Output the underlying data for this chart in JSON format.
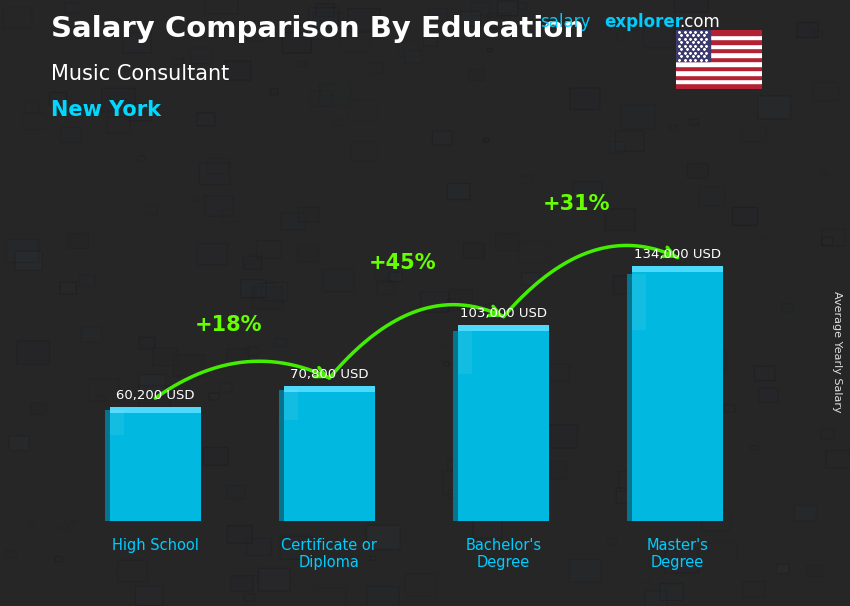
{
  "title": "Salary Comparison By Education",
  "subtitle1": "Music Consultant",
  "subtitle2": "New York",
  "ylabel": "Average Yearly Salary",
  "categories": [
    "High School",
    "Certificate or\nDiploma",
    "Bachelor's\nDegree",
    "Master's\nDegree"
  ],
  "values": [
    60200,
    70800,
    103000,
    134000
  ],
  "labels": [
    "60,200 USD",
    "70,800 USD",
    "103,000 USD",
    "134,000 USD"
  ],
  "pct_changes": [
    "+18%",
    "+45%",
    "+31%"
  ],
  "bar_color_face": "#00b8e0",
  "bar_color_light": "#00d8ff",
  "bar_color_dark": "#0088aa",
  "bar_top_color": "#55ddff",
  "title_color": "#ffffff",
  "subtitle1_color": "#ffffff",
  "subtitle2_color": "#00d8ff",
  "label_color": "#ffffff",
  "pct_color": "#66ff00",
  "arrow_color": "#44ee00",
  "axis_label_color": "#00ccff",
  "background_color": "#1a1a2a",
  "ylim": [
    0,
    175000
  ],
  "bar_width": 0.52
}
